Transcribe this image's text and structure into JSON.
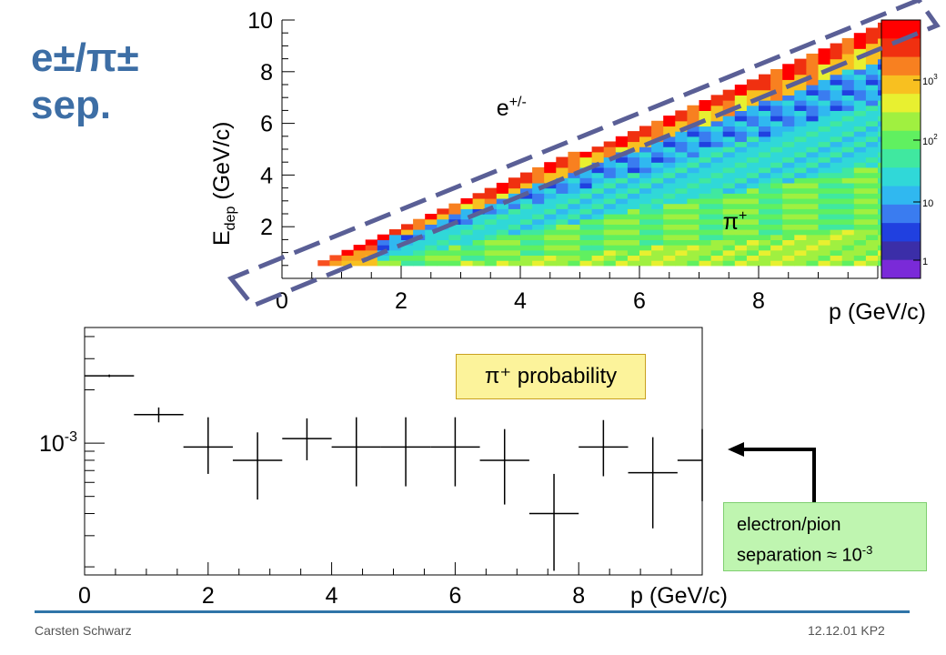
{
  "slide": {
    "title_line1": "e±/π±",
    "title_line2": "sep."
  },
  "footer": {
    "left": "Carsten Schwarz",
    "right": "12.12.01 KP2"
  },
  "callouts": {
    "probability": "π⁺ probability",
    "separation_line1": "electron/pion",
    "separation_line2": "separation ≈ 10",
    "separation_exp": "-3"
  },
  "colors": {
    "title": "#3d6ea5",
    "dashed_box": "#5a5f96",
    "footer_line": "#2f74a8",
    "callout_prob_bg": "#fcf39b",
    "callout_sep_bg": "#bff5b0"
  },
  "chart_data": [
    {
      "type": "heatmap",
      "xlabel": "p (GeV/c)",
      "ylabel_main": "E",
      "ylabel_sub": "dep",
      "ylabel_unit": "(GeV/c)",
      "x_ticks": [
        "0",
        "2",
        "4",
        "6",
        "8"
      ],
      "y_ticks": [
        "2",
        "4",
        "6",
        "8",
        "10"
      ],
      "xlim": [
        0,
        10
      ],
      "ylim": [
        0,
        10
      ],
      "annotations": [
        {
          "text": "e",
          "sup": "+/-",
          "x": 3.6,
          "y": 6.3
        },
        {
          "text": "π",
          "sup": "+",
          "x": 7.4,
          "y": 1.9
        }
      ],
      "colorbar": {
        "scale": "log",
        "ticks": [
          {
            "base": "1",
            "exp": ""
          },
          {
            "base": "10",
            "exp": ""
          },
          {
            "base": "10",
            "exp": "2"
          },
          {
            "base": "10",
            "exp": "3"
          }
        ]
      }
    },
    {
      "type": "scatter",
      "xlabel": "p (GeV/c)",
      "yscale": "log",
      "x_ticks": [
        "0",
        "2",
        "4",
        "6",
        "8"
      ],
      "y_tick_base": "10",
      "y_tick_exp": "-3",
      "xlim": [
        0,
        10
      ],
      "ylim": [
        0.00018,
        0.0045
      ],
      "points": [
        {
          "x": 0.4,
          "y": 0.0024,
          "xerr": 0.4,
          "yerr_lo": 4e-05,
          "yerr_hi": 4e-05
        },
        {
          "x": 1.2,
          "y": 0.00145,
          "xerr": 0.4,
          "yerr_lo": 0.00014,
          "yerr_hi": 0.00014
        },
        {
          "x": 2.0,
          "y": 0.00095,
          "xerr": 0.4,
          "yerr_lo": 0.00028,
          "yerr_hi": 0.00045
        },
        {
          "x": 2.8,
          "y": 0.0008,
          "xerr": 0.4,
          "yerr_lo": 0.00032,
          "yerr_hi": 0.00035
        },
        {
          "x": 3.6,
          "y": 0.00106,
          "xerr": 0.4,
          "yerr_lo": 0.00026,
          "yerr_hi": 0.00032
        },
        {
          "x": 4.4,
          "y": 0.00095,
          "xerr": 0.4,
          "yerr_lo": 0.00038,
          "yerr_hi": 0.00045
        },
        {
          "x": 5.2,
          "y": 0.00095,
          "xerr": 0.4,
          "yerr_lo": 0.00038,
          "yerr_hi": 0.00045
        },
        {
          "x": 6.0,
          "y": 0.00095,
          "xerr": 0.4,
          "yerr_lo": 0.00038,
          "yerr_hi": 0.00045
        },
        {
          "x": 6.8,
          "y": 0.0008,
          "xerr": 0.4,
          "yerr_lo": 0.00035,
          "yerr_hi": 0.0004
        },
        {
          "x": 7.6,
          "y": 0.0004,
          "xerr": 0.4,
          "yerr_lo": 0.00021,
          "yerr_hi": 0.00027
        },
        {
          "x": 8.4,
          "y": 0.00095,
          "xerr": 0.4,
          "yerr_lo": 0.0003,
          "yerr_hi": 0.0004
        },
        {
          "x": 9.2,
          "y": 0.00068,
          "xerr": 0.4,
          "yerr_lo": 0.00035,
          "yerr_hi": 0.0004
        },
        {
          "x": 10.0,
          "y": 0.0008,
          "xerr": 0.4,
          "yerr_lo": 0.00033,
          "yerr_hi": 0.0004
        }
      ]
    }
  ]
}
